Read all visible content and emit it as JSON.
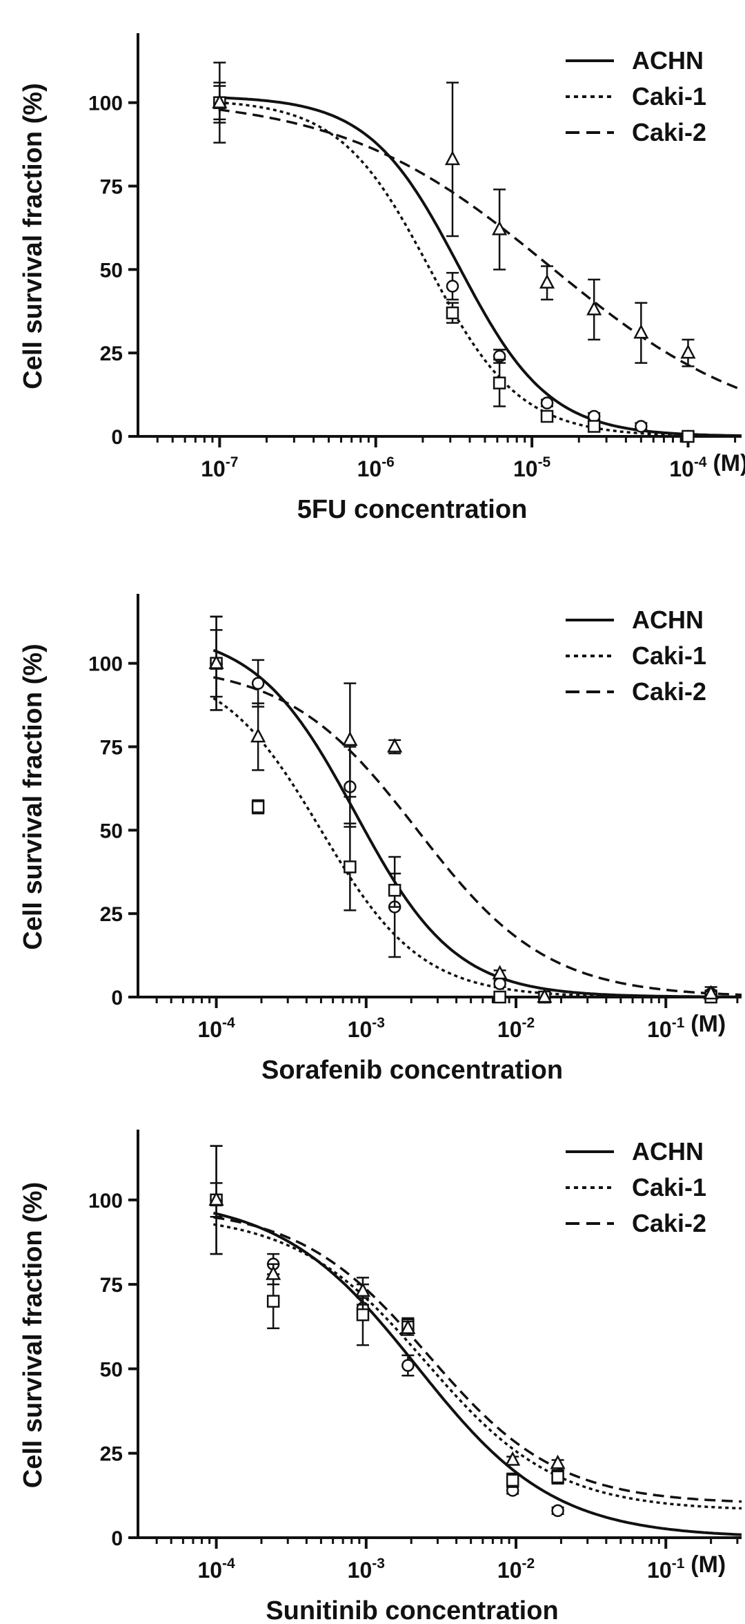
{
  "colors": {
    "ink": "#111111",
    "background": "#ffffff"
  },
  "chart_data": [
    {
      "type": "line",
      "x_scale": "log",
      "xlabel": "5FU concentration",
      "ylabel": "Cell survival fraction (%)",
      "x_unit": "(M)",
      "ylim": [
        0,
        120
      ],
      "yticks": [
        0,
        25,
        50,
        75,
        100
      ],
      "xlim": [
        3e-08,
        0.00022
      ],
      "xticks": [
        {
          "value": 1e-07,
          "base": "10",
          "exp": "-7"
        },
        {
          "value": 1e-06,
          "base": "10",
          "exp": "-6"
        },
        {
          "value": 1e-05,
          "base": "10",
          "exp": "-5"
        },
        {
          "value": 0.0001,
          "base": "10",
          "exp": "-4"
        }
      ],
      "legend_position": "top-right",
      "series": [
        {
          "name": "ACHN",
          "line_style": "solid",
          "marker": "circle",
          "curve": {
            "top": 102,
            "bottom": 0,
            "ec50": 3.4e-06,
            "hill": 1.5
          },
          "points": [
            {
              "x": 1e-07,
              "y": 100,
              "err": 6
            },
            {
              "x": 3.1e-06,
              "y": 45,
              "err": 4
            },
            {
              "x": 6.2e-06,
              "y": 24,
              "err": 2
            },
            {
              "x": 1.25e-05,
              "y": 10,
              "err": 1
            },
            {
              "x": 2.5e-05,
              "y": 6,
              "err": 1
            },
            {
              "x": 5e-05,
              "y": 3,
              "err": 1
            },
            {
              "x": 0.0001,
              "y": 0,
              "err": 0
            }
          ]
        },
        {
          "name": "Caki-1",
          "line_style": "dotted",
          "marker": "square",
          "curve": {
            "top": 101,
            "bottom": 0,
            "ec50": 2.2e-06,
            "hill": 1.5
          },
          "points": [
            {
              "x": 1e-07,
              "y": 100,
              "err": 12
            },
            {
              "x": 3.1e-06,
              "y": 37,
              "err": 3
            },
            {
              "x": 6.2e-06,
              "y": 16,
              "err": 7
            },
            {
              "x": 1.25e-05,
              "y": 6,
              "err": 1
            },
            {
              "x": 2.5e-05,
              "y": 3,
              "err": 1
            },
            {
              "x": 0.0001,
              "y": 0,
              "err": 0
            }
          ]
        },
        {
          "name": "Caki-2",
          "line_style": "dashed",
          "marker": "triangle",
          "curve": {
            "top": 102,
            "bottom": 0,
            "ec50": 1.3e-05,
            "hill": 0.65
          },
          "points": [
            {
              "x": 1e-07,
              "y": 100,
              "err": 5
            },
            {
              "x": 3.1e-06,
              "y": 83,
              "err": 23
            },
            {
              "x": 6.2e-06,
              "y": 62,
              "err": 12
            },
            {
              "x": 1.25e-05,
              "y": 46,
              "err": 5
            },
            {
              "x": 2.5e-05,
              "y": 38,
              "err": 9
            },
            {
              "x": 5e-05,
              "y": 31,
              "err": 9
            },
            {
              "x": 0.0001,
              "y": 25,
              "err": 4
            }
          ]
        }
      ]
    },
    {
      "type": "line",
      "x_scale": "log",
      "xlabel": "Sorafenib concentration",
      "ylabel": "Cell survival fraction (%)",
      "x_unit": "(M)",
      "ylim": [
        0,
        120
      ],
      "yticks": [
        0,
        25,
        50,
        75,
        100
      ],
      "xlim": [
        3e-05,
        0.32
      ],
      "xticks": [
        {
          "value": 0.0001,
          "base": "10",
          "exp": "-4"
        },
        {
          "value": 0.001,
          "base": "10",
          "exp": "-3"
        },
        {
          "value": 0.01,
          "base": "10",
          "exp": "-2"
        },
        {
          "value": 0.1,
          "base": "10",
          "exp": "-1"
        }
      ],
      "legend_position": "top-right",
      "series": [
        {
          "name": "ACHN",
          "line_style": "solid",
          "marker": "circle",
          "curve": {
            "top": 110,
            "bottom": 0,
            "ec50": 0.00085,
            "hill": 1.3
          },
          "points": [
            {
              "x": 0.0001,
              "y": 100,
              "err": 14
            },
            {
              "x": 0.00019,
              "y": 94,
              "err": 7
            },
            {
              "x": 0.00078,
              "y": 63,
              "err": 12
            },
            {
              "x": 0.00155,
              "y": 27,
              "err": 15
            },
            {
              "x": 0.0078,
              "y": 4,
              "err": 1
            },
            {
              "x": 0.0155,
              "y": 0,
              "err": 0
            },
            {
              "x": 0.2,
              "y": 1,
              "err": 2
            }
          ]
        },
        {
          "name": "Caki-1",
          "line_style": "dotted",
          "marker": "square",
          "curve": {
            "top": 100,
            "bottom": 0,
            "ec50": 0.0005,
            "hill": 1.3
          },
          "points": [
            {
              "x": 0.0001,
              "y": 100,
              "err": 14
            },
            {
              "x": 0.00019,
              "y": 57,
              "err": 2
            },
            {
              "x": 0.00078,
              "y": 39,
              "err": 13
            },
            {
              "x": 0.00155,
              "y": 32,
              "err": 5
            },
            {
              "x": 0.0078,
              "y": 0,
              "err": 0
            },
            {
              "x": 0.0155,
              "y": 0,
              "err": 0
            },
            {
              "x": 0.2,
              "y": 0,
              "err": 0
            }
          ]
        },
        {
          "name": "Caki-2",
          "line_style": "dashed",
          "marker": "triangle",
          "curve": {
            "top": 100,
            "bottom": 0,
            "ec50": 0.0022,
            "hill": 1.0
          },
          "points": [
            {
              "x": 0.0001,
              "y": 100,
              "err": 10
            },
            {
              "x": 0.00019,
              "y": 78,
              "err": 10
            },
            {
              "x": 0.00078,
              "y": 77,
              "err": 17
            },
            {
              "x": 0.00155,
              "y": 75,
              "err": 2
            },
            {
              "x": 0.0078,
              "y": 7,
              "err": 1
            },
            {
              "x": 0.0155,
              "y": 0,
              "err": 0
            },
            {
              "x": 0.2,
              "y": 1,
              "err": 1
            }
          ]
        }
      ]
    },
    {
      "type": "line",
      "x_scale": "log",
      "xlabel": "Sunitinib concentration",
      "ylabel": "Cell survival fraction (%)",
      "x_unit": "(M)",
      "ylim": [
        0,
        120
      ],
      "yticks": [
        0,
        25,
        50,
        75,
        100
      ],
      "xlim": [
        3e-05,
        0.32
      ],
      "xticks": [
        {
          "value": 0.0001,
          "base": "10",
          "exp": "-4"
        },
        {
          "value": 0.001,
          "base": "10",
          "exp": "-3"
        },
        {
          "value": 0.01,
          "base": "10",
          "exp": "-2"
        },
        {
          "value": 0.1,
          "base": "10",
          "exp": "-1"
        }
      ],
      "legend_position": "top-right",
      "series": [
        {
          "name": "ACHN",
          "line_style": "solid",
          "marker": "circle",
          "curve": {
            "top": 101,
            "bottom": 0,
            "ec50": 0.0022,
            "hill": 0.95
          },
          "points": [
            {
              "x": 0.0001,
              "y": 100,
              "err": 16
            },
            {
              "x": 0.00024,
              "y": 81,
              "err": 3
            },
            {
              "x": 0.00095,
              "y": 68,
              "err": 3
            },
            {
              "x": 0.0019,
              "y": 51,
              "err": 3
            },
            {
              "x": 0.0095,
              "y": 14,
              "err": 1
            },
            {
              "x": 0.019,
              "y": 8,
              "err": 1
            }
          ]
        },
        {
          "name": "Caki-1",
          "line_style": "dotted",
          "marker": "square",
          "curve": {
            "top": 96,
            "bottom": 8,
            "ec50": 0.0025,
            "hill": 1.0
          },
          "points": [
            {
              "x": 0.0001,
              "y": 100,
              "err": 16
            },
            {
              "x": 0.00024,
              "y": 70,
              "err": 8
            },
            {
              "x": 0.00095,
              "y": 66,
              "err": 9
            },
            {
              "x": 0.0019,
              "y": 63,
              "err": 2
            },
            {
              "x": 0.0095,
              "y": 17,
              "err": 2
            },
            {
              "x": 0.019,
              "y": 18,
              "err": 2
            }
          ]
        },
        {
          "name": "Caki-2",
          "line_style": "dashed",
          "marker": "triangle",
          "curve": {
            "top": 98,
            "bottom": 10,
            "ec50": 0.0026,
            "hill": 1.0
          },
          "points": [
            {
              "x": 0.0001,
              "y": 100,
              "err": 5
            },
            {
              "x": 0.00024,
              "y": 78,
              "err": 3
            },
            {
              "x": 0.00095,
              "y": 73,
              "err": 4
            },
            {
              "x": 0.0019,
              "y": 62,
              "err": 2
            },
            {
              "x": 0.0095,
              "y": 23,
              "err": 1
            },
            {
              "x": 0.019,
              "y": 22,
              "err": 1
            }
          ]
        }
      ]
    }
  ]
}
